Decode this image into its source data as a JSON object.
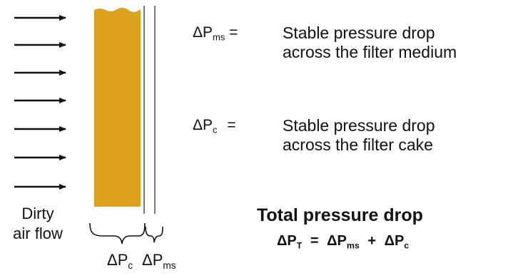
{
  "colors": {
    "cake": "#dca21b",
    "line": "#111111"
  },
  "definitions": [
    {
      "term_base": "ΔP",
      "term_sub": "ms",
      "equals": "=",
      "line1": "Stable pressure drop",
      "line2": "across the filter medium"
    },
    {
      "term_base": "ΔP",
      "term_sub": "c",
      "equals": "=",
      "line1": "Stable pressure drop",
      "line2": "across the filter cake"
    }
  ],
  "flow_label": {
    "line1": "Dirty",
    "line2": "air flow"
  },
  "bracket_labels": {
    "cake": {
      "base": "ΔP",
      "sub": "c"
    },
    "medium": {
      "base": "ΔP",
      "sub": "ms"
    }
  },
  "total": {
    "title": "Total pressure drop",
    "lhs_base": "ΔP",
    "lhs_sub": "T",
    "eq": "=",
    "t1_base": "ΔP",
    "t1_sub": "ms",
    "plus": "+",
    "t2_base": "ΔP",
    "t2_sub": "c"
  },
  "icons": {
    "flow_arrow": "right-arrow-icon",
    "brace": "curly-brace-icon"
  }
}
